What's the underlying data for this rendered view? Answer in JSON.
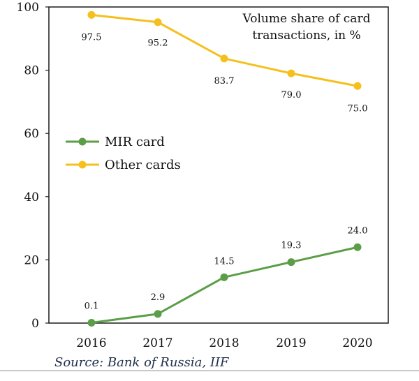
{
  "chart_data": {
    "type": "line",
    "title": "",
    "annotation": [
      "Volume share of card",
      "transactions, in %"
    ],
    "source": "Source: Bank of Russia, IIF",
    "categories": [
      "2016",
      "2017",
      "2018",
      "2019",
      "2020"
    ],
    "ylim": [
      0,
      100
    ],
    "yticks": [
      0,
      20,
      40,
      60,
      80,
      100
    ],
    "series": [
      {
        "name": "MIR card",
        "color": "#5b9e47",
        "values": [
          0.1,
          2.9,
          14.5,
          19.3,
          24.0
        ],
        "labels": [
          "0.1",
          "2.9",
          "14.5",
          "19.3",
          "24.0"
        ]
      },
      {
        "name": "Other cards",
        "color": "#f5c01e",
        "values": [
          97.5,
          95.2,
          83.7,
          79.0,
          75.0
        ],
        "labels": [
          "97.5",
          "95.2",
          "83.7",
          "79.0",
          "75.0"
        ]
      }
    ],
    "legend": "left-middle",
    "grid": false
  }
}
